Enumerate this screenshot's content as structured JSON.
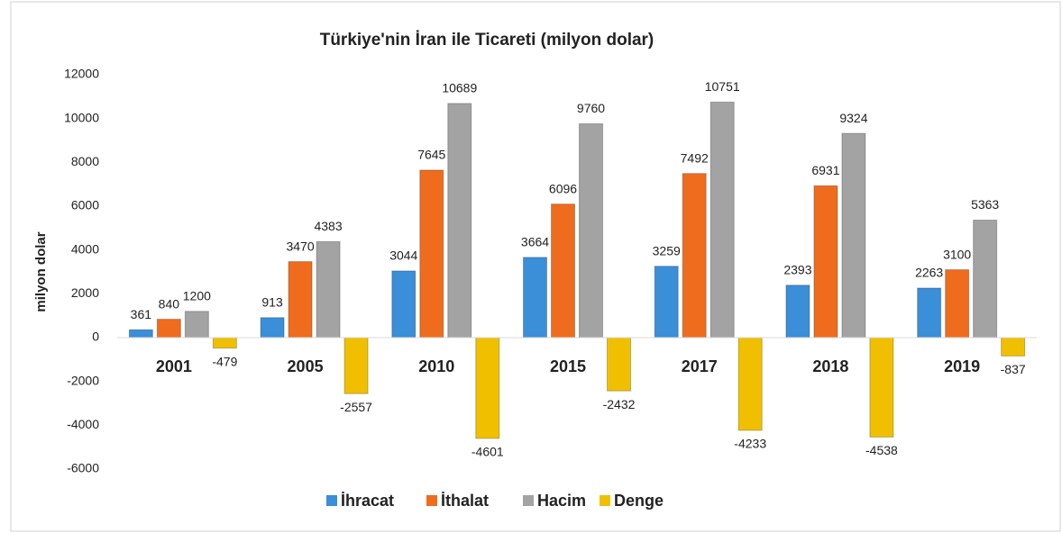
{
  "chart_data": {
    "type": "bar",
    "title": "Türkiye'nin İran ile Ticareti (milyon dolar)",
    "y_label": "milyon dolar",
    "categories": [
      "2001",
      "2005",
      "2010",
      "2015",
      "2017",
      "2018",
      "2019"
    ],
    "series": [
      {
        "name": "İhracat",
        "color": "#3b8ed8",
        "values": [
          361,
          913,
          3044,
          3664,
          3259,
          2393,
          2263
        ]
      },
      {
        "name": "İthalat",
        "color": "#ef6c1e",
        "values": [
          840,
          3470,
          7645,
          6096,
          7492,
          6931,
          3100
        ]
      },
      {
        "name": "Hacim",
        "color": "#a3a3a3",
        "values": [
          1200,
          4383,
          10689,
          9760,
          10751,
          9324,
          5363
        ]
      },
      {
        "name": "Denge",
        "color": "#f0c000",
        "values": [
          -479,
          -2557,
          -4601,
          -2432,
          -4233,
          -4538,
          -837
        ]
      }
    ],
    "ylim": [
      -6000,
      12000
    ],
    "yticks": [
      -6000,
      -4000,
      -2000,
      0,
      2000,
      4000,
      6000,
      8000,
      10000,
      12000
    ],
    "legend": "bottom"
  }
}
